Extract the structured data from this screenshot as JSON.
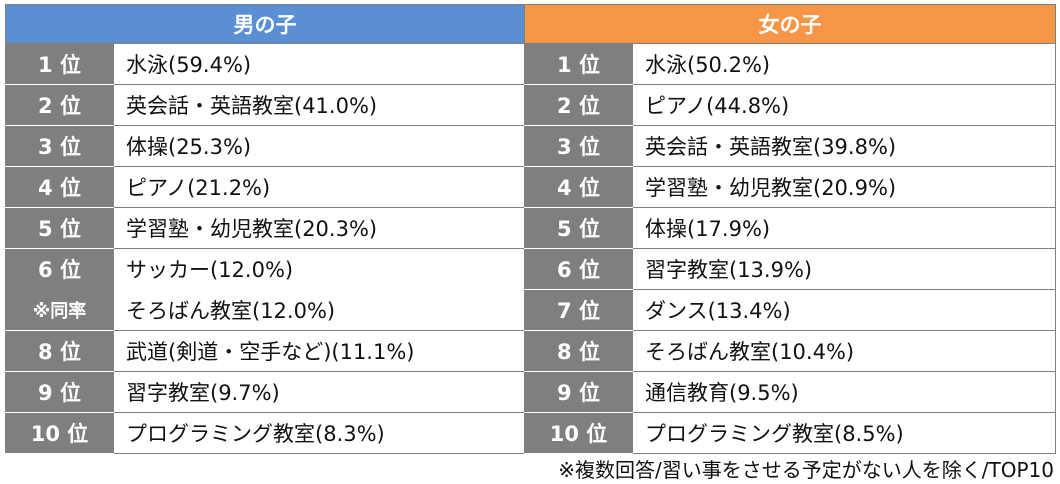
{
  "chart_data": {
    "type": "table",
    "columns": [
      {
        "name": "男の子",
        "header_color": "#5b8fd4",
        "rows": [
          {
            "rank": "1 位",
            "item": "水泳(59.4%)"
          },
          {
            "rank": "2 位",
            "item": "英会話・英語教室(41.0%)"
          },
          {
            "rank": "3 位",
            "item": "体操(25.3%)"
          },
          {
            "rank": "4 位",
            "item": "ピアノ(21.2%)"
          },
          {
            "rank": "5 位",
            "item": "学習塾・幼児教室(20.3%)"
          },
          {
            "rank": "6 位",
            "item": "サッカー(12.0%)"
          },
          {
            "rank": "※同率",
            "item": "そろばん教室(12.0%)"
          },
          {
            "rank": "8 位",
            "item": "武道(剣道・空手など)(11.1%)"
          },
          {
            "rank": "9 位",
            "item": "習字教室(9.7%)"
          },
          {
            "rank": "10 位",
            "item": "プログラミング教室(8.3%)"
          }
        ]
      },
      {
        "name": "女の子",
        "header_color": "#f79646",
        "rows": [
          {
            "rank": "1 位",
            "item": "水泳(50.2%)"
          },
          {
            "rank": "2 位",
            "item": "ピアノ(44.8%)"
          },
          {
            "rank": "3 位",
            "item": "英会話・英語教室(39.8%)"
          },
          {
            "rank": "4 位",
            "item": "学習塾・幼児教室(20.9%)"
          },
          {
            "rank": "5 位",
            "item": "体操(17.9%)"
          },
          {
            "rank": "6 位",
            "item": "習字教室(13.9%)"
          },
          {
            "rank": "7 位",
            "item": "ダンス(13.4%)"
          },
          {
            "rank": "8 位",
            "item": "そろばん教室(10.4%)"
          },
          {
            "rank": "9 位",
            "item": "通信教育(9.5%)"
          },
          {
            "rank": "10 位",
            "item": "プログラミング教室(8.5%)"
          }
        ]
      }
    ],
    "rank_cell_color": "#7f7f7f",
    "footnote": "※複数回答/習い事をさせる予定がない人を除く/TOP10"
  }
}
